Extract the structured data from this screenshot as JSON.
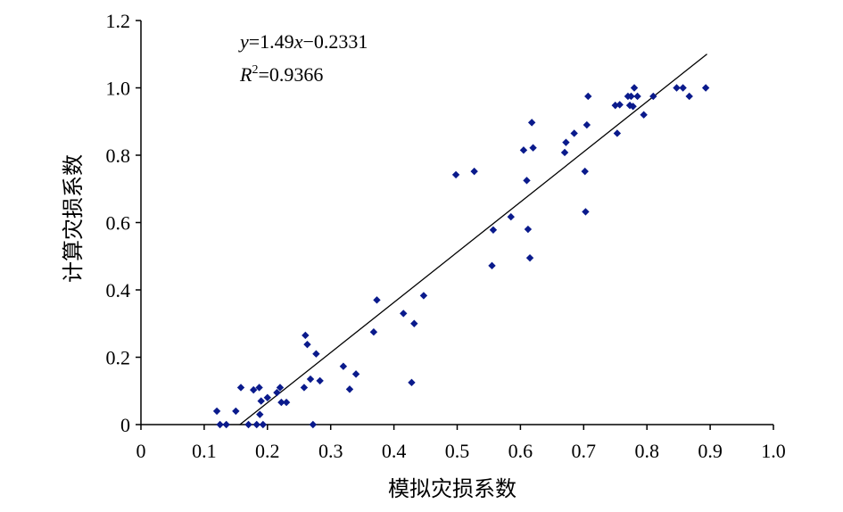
{
  "chart_data": {
    "type": "scatter",
    "xlabel": "模拟灾损系数",
    "ylabel": "计算灾损系数",
    "xlim": [
      0,
      1.0
    ],
    "ylim": [
      0,
      1.2
    ],
    "x_ticks": [
      "0",
      "0.1",
      "0.2",
      "0.3",
      "0.4",
      "0.5",
      "0.6",
      "0.7",
      "0.8",
      "0.9",
      "1.0"
    ],
    "y_ticks": [
      "0",
      "0.2",
      "0.4",
      "0.6",
      "0.8",
      "1.0",
      "1.2"
    ],
    "grid": false,
    "marker_color": "#0a1a8c",
    "equation": {
      "y_var": "y",
      "eq_text": "=1.49",
      "x_var": "x",
      "rest": "−0.2331",
      "r_var": "R",
      "r_sup": "2",
      "r_val": "=0.9366"
    },
    "trendline": {
      "slope": 1.49,
      "intercept": -0.2331,
      "x_range": [
        0.156,
        0.895
      ]
    },
    "points": [
      [
        0.12,
        0.04
      ],
      [
        0.125,
        0.0
      ],
      [
        0.135,
        0.0
      ],
      [
        0.15,
        0.04
      ],
      [
        0.158,
        0.11
      ],
      [
        0.17,
        0.0
      ],
      [
        0.178,
        0.103
      ],
      [
        0.183,
        0.0
      ],
      [
        0.187,
        0.11
      ],
      [
        0.188,
        0.03
      ],
      [
        0.19,
        0.07
      ],
      [
        0.193,
        0.0
      ],
      [
        0.2,
        0.08
      ],
      [
        0.215,
        0.095
      ],
      [
        0.22,
        0.11
      ],
      [
        0.222,
        0.066
      ],
      [
        0.23,
        0.066
      ],
      [
        0.258,
        0.11
      ],
      [
        0.26,
        0.265
      ],
      [
        0.263,
        0.238
      ],
      [
        0.268,
        0.135
      ],
      [
        0.272,
        0.0
      ],
      [
        0.277,
        0.21
      ],
      [
        0.283,
        0.13
      ],
      [
        0.32,
        0.173
      ],
      [
        0.33,
        0.105
      ],
      [
        0.34,
        0.15
      ],
      [
        0.368,
        0.275
      ],
      [
        0.373,
        0.37
      ],
      [
        0.415,
        0.33
      ],
      [
        0.428,
        0.125
      ],
      [
        0.432,
        0.3
      ],
      [
        0.447,
        0.383
      ],
      [
        0.498,
        0.742
      ],
      [
        0.527,
        0.752
      ],
      [
        0.555,
        0.472
      ],
      [
        0.557,
        0.578
      ],
      [
        0.585,
        0.617
      ],
      [
        0.605,
        0.815
      ],
      [
        0.61,
        0.725
      ],
      [
        0.612,
        0.58
      ],
      [
        0.615,
        0.495
      ],
      [
        0.618,
        0.897
      ],
      [
        0.62,
        0.822
      ],
      [
        0.67,
        0.808
      ],
      [
        0.672,
        0.838
      ],
      [
        0.685,
        0.865
      ],
      [
        0.702,
        0.752
      ],
      [
        0.703,
        0.632
      ],
      [
        0.705,
        0.89
      ],
      [
        0.707,
        0.975
      ],
      [
        0.75,
        0.948
      ],
      [
        0.753,
        0.865
      ],
      [
        0.757,
        0.95
      ],
      [
        0.77,
        0.975
      ],
      [
        0.773,
        0.948
      ],
      [
        0.775,
        0.975
      ],
      [
        0.778,
        0.945
      ],
      [
        0.78,
        1.0
      ],
      [
        0.785,
        0.975
      ],
      [
        0.795,
        0.92
      ],
      [
        0.81,
        0.975
      ],
      [
        0.847,
        1.0
      ],
      [
        0.857,
        1.0
      ],
      [
        0.867,
        0.975
      ],
      [
        0.893,
        1.0
      ]
    ]
  }
}
